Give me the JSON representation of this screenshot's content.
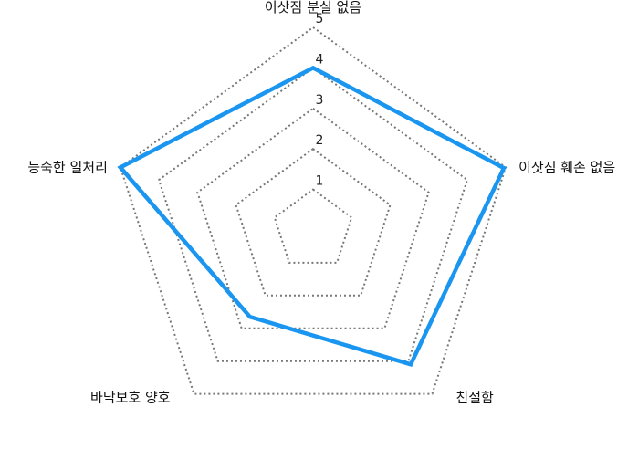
{
  "chart_data": {
    "type": "radar",
    "axes": [
      "이삿짐 분실 없음",
      "이삿짐 훼손 없음",
      "친절함",
      "바닥보호 양호",
      "능숙한 일처리"
    ],
    "ticks": [
      "1",
      "2",
      "3",
      "4",
      "5"
    ],
    "range": [
      0,
      5
    ],
    "series": [
      {
        "values": [
          4.0,
          4.95,
          4.1,
          2.65,
          5.0
        ],
        "color": "#1a96f0"
      }
    ],
    "grid": true,
    "grid_style": "dotted",
    "legend": "none"
  }
}
